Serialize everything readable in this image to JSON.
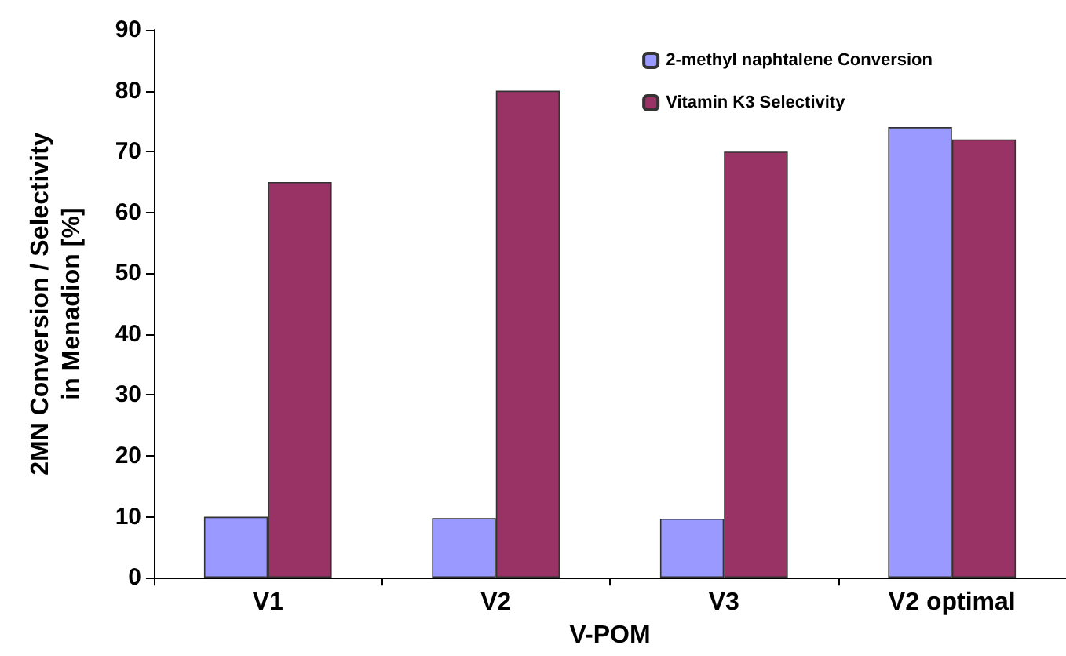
{
  "chart_data": {
    "type": "bar",
    "xlabel": "V-POM",
    "ylabel": "2MN Conversion / Selectivity\nin Menadion [%]",
    "categories": [
      "V1",
      "V2",
      "V3",
      "V2 optimal"
    ],
    "series": [
      {
        "name": "2-methyl naphtalene Conversion",
        "color": "#9999ff",
        "values": [
          10,
          9.8,
          9.7,
          74
        ]
      },
      {
        "name": "Vitamin K3 Selectivity",
        "color": "#993366",
        "values": [
          65,
          80,
          70,
          72
        ]
      }
    ],
    "ylim": [
      0,
      90
    ],
    "yticks": [
      0,
      10,
      20,
      30,
      40,
      50,
      60,
      70,
      80,
      90
    ],
    "grid": false,
    "legend": "top right"
  }
}
